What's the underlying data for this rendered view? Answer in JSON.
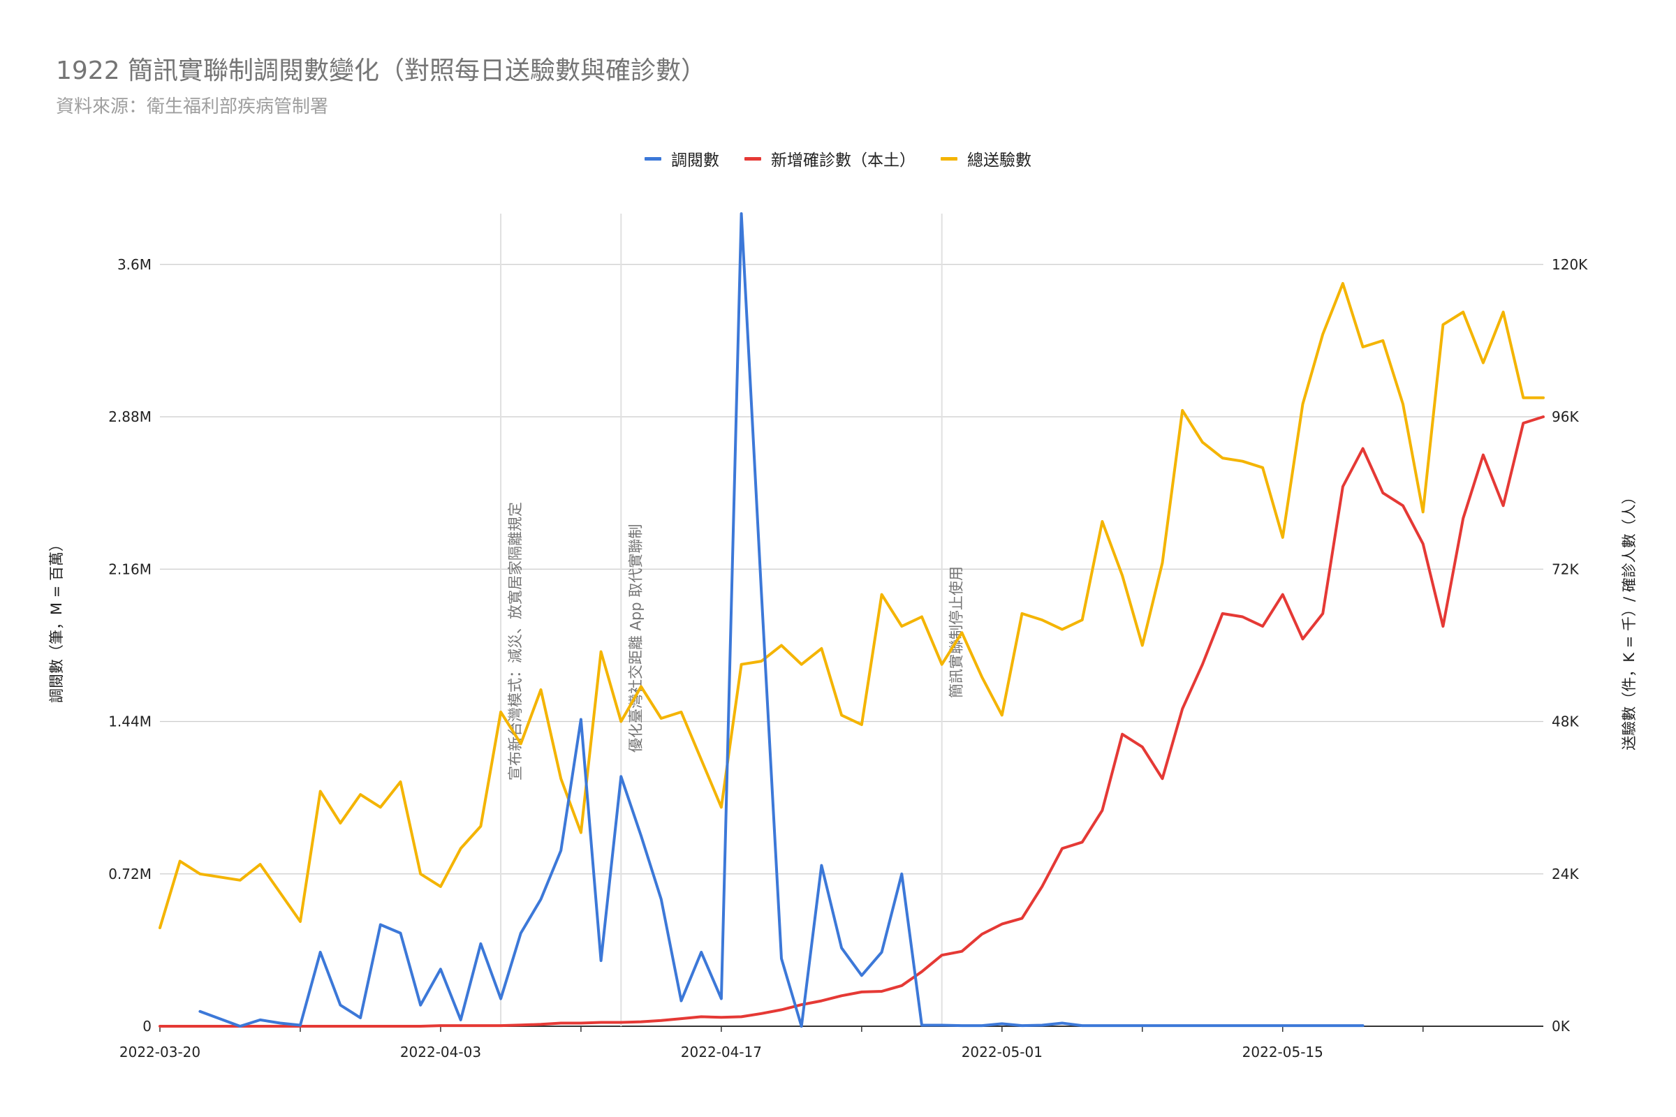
{
  "title": "1922 簡訊實聯制調閱數變化（對照每日送驗數與確診數）",
  "subtitle": "資料來源：衛生福利部疾病管制署",
  "colors": {
    "blue": "#3c78d8",
    "red": "#e53935",
    "yellow": "#f4b400",
    "grid": "#cccccc",
    "vline": "#e0e0e0"
  },
  "chart_data": {
    "type": "line",
    "x_dates": [
      "2022-03-20",
      "2022-03-21",
      "2022-03-22",
      "2022-03-23",
      "2022-03-24",
      "2022-03-25",
      "2022-03-26",
      "2022-03-27",
      "2022-03-28",
      "2022-03-29",
      "2022-03-30",
      "2022-03-31",
      "2022-04-01",
      "2022-04-02",
      "2022-04-03",
      "2022-04-04",
      "2022-04-05",
      "2022-04-06",
      "2022-04-07",
      "2022-04-08",
      "2022-04-09",
      "2022-04-10",
      "2022-04-11",
      "2022-04-12",
      "2022-04-13",
      "2022-04-14",
      "2022-04-15",
      "2022-04-16",
      "2022-04-17",
      "2022-04-18",
      "2022-04-19",
      "2022-04-20",
      "2022-04-21",
      "2022-04-22",
      "2022-04-23",
      "2022-04-24",
      "2022-04-25",
      "2022-04-26",
      "2022-04-27",
      "2022-04-28",
      "2022-04-29",
      "2022-04-30",
      "2022-05-01",
      "2022-05-02",
      "2022-05-03",
      "2022-05-04",
      "2022-05-05",
      "2022-05-06",
      "2022-05-07",
      "2022-05-08",
      "2022-05-09",
      "2022-05-10",
      "2022-05-11",
      "2022-05-12",
      "2022-05-13",
      "2022-05-14",
      "2022-05-15",
      "2022-05-16",
      "2022-05-17",
      "2022-05-18",
      "2022-05-19",
      "2022-05-20",
      "2022-05-21",
      "2022-05-22",
      "2022-05-23",
      "2022-05-24",
      "2022-05-25",
      "2022-05-26",
      "2022-05-27",
      "2022-05-28"
    ],
    "x_tick_labels": [
      "2022-03-20",
      "2022-04-03",
      "2022-04-17",
      "2022-05-01",
      "2022-05-15"
    ],
    "left_axis": {
      "label": "調閱數（筆，M = 百萬）",
      "ticks": [
        "0",
        "0.72M",
        "1.44M",
        "2.16M",
        "2.88M",
        "3.6M"
      ],
      "min": 0,
      "max": 3840000
    },
    "right_axis": {
      "label": "送驗數（件，K = 千）/ 確診人數（人）",
      "ticks": [
        "0K",
        "24K",
        "48K",
        "72K",
        "96K",
        "120K"
      ],
      "min": 0,
      "max": 128000
    },
    "legend": [
      "調閱數",
      "新增確診數（本土）",
      "總送驗數"
    ],
    "series": [
      {
        "name": "調閱數",
        "axis": "left",
        "color": "#3c78d8",
        "values": [
          null,
          null,
          70000,
          35000,
          0,
          30000,
          15000,
          5000,
          350000,
          100000,
          40000,
          480000,
          440000,
          100000,
          270000,
          30000,
          390000,
          130000,
          440000,
          600000,
          830000,
          1450000,
          310000,
          1180000,
          900000,
          600000,
          120000,
          350000,
          130000,
          3850000,
          2050000,
          320000,
          0,
          760000,
          370000,
          240000,
          350000,
          720000,
          5000,
          5000,
          3000,
          3000,
          12000,
          3000,
          5000,
          15000,
          3000,
          3000,
          3000,
          3000,
          3000,
          3000,
          3000,
          3000,
          3000,
          3000,
          3000,
          3000,
          3000,
          3000,
          3000,
          null,
          null,
          null,
          null,
          null,
          3000,
          null,
          null,
          null
        ]
      },
      {
        "name": "新增確診數（本土）",
        "axis": "right",
        "color": "#e53935",
        "values": [
          0,
          0,
          0,
          0,
          0,
          0,
          0,
          0,
          0,
          0,
          0,
          0,
          0,
          0,
          100,
          100,
          100,
          100,
          200,
          300,
          500,
          500,
          600,
          600,
          700,
          900,
          1200,
          1500,
          1400,
          1500,
          2000,
          2600,
          3400,
          4000,
          4800,
          5400,
          5500,
          6400,
          8600,
          11200,
          11800,
          14500,
          16100,
          17000,
          22000,
          28000,
          29000,
          34000,
          46000,
          44000,
          39000,
          50000,
          57000,
          65000,
          64500,
          63000,
          68000,
          61000,
          65000,
          85000,
          91000,
          84000,
          82000,
          76000,
          63000,
          80000,
          90000,
          82000,
          95000,
          96000
        ]
      },
      {
        "name": "總送驗數",
        "axis": "right",
        "color": "#f4b400",
        "values": [
          15500,
          26000,
          24000,
          23500,
          23000,
          25500,
          21000,
          16500,
          37000,
          32000,
          36500,
          34500,
          38500,
          24000,
          22000,
          28000,
          31500,
          49500,
          44500,
          53000,
          39000,
          30500,
          59000,
          48000,
          53500,
          48500,
          49500,
          42000,
          34500,
          57000,
          57500,
          60000,
          57000,
          59500,
          49000,
          47500,
          68000,
          63000,
          64500,
          57000,
          62000,
          55000,
          49000,
          65000,
          64000,
          62500,
          64000,
          79500,
          71000,
          60000,
          73000,
          97000,
          92000,
          89500,
          89000,
          88000,
          77000,
          98000,
          109000,
          117000,
          107000,
          108000,
          98000,
          81000,
          110500,
          112500,
          104500,
          112500,
          99000,
          99000
        ]
      }
    ],
    "annotations": [
      {
        "date": "2022-04-06",
        "text": "宣布新台灣模式：減災、放寬居家隔離規定"
      },
      {
        "date": "2022-04-12",
        "text": "優化臺灣社交距離 App 取代實聯制"
      },
      {
        "date": "2022-04-28",
        "text": "簡訊實聯制停止使用"
      }
    ]
  }
}
